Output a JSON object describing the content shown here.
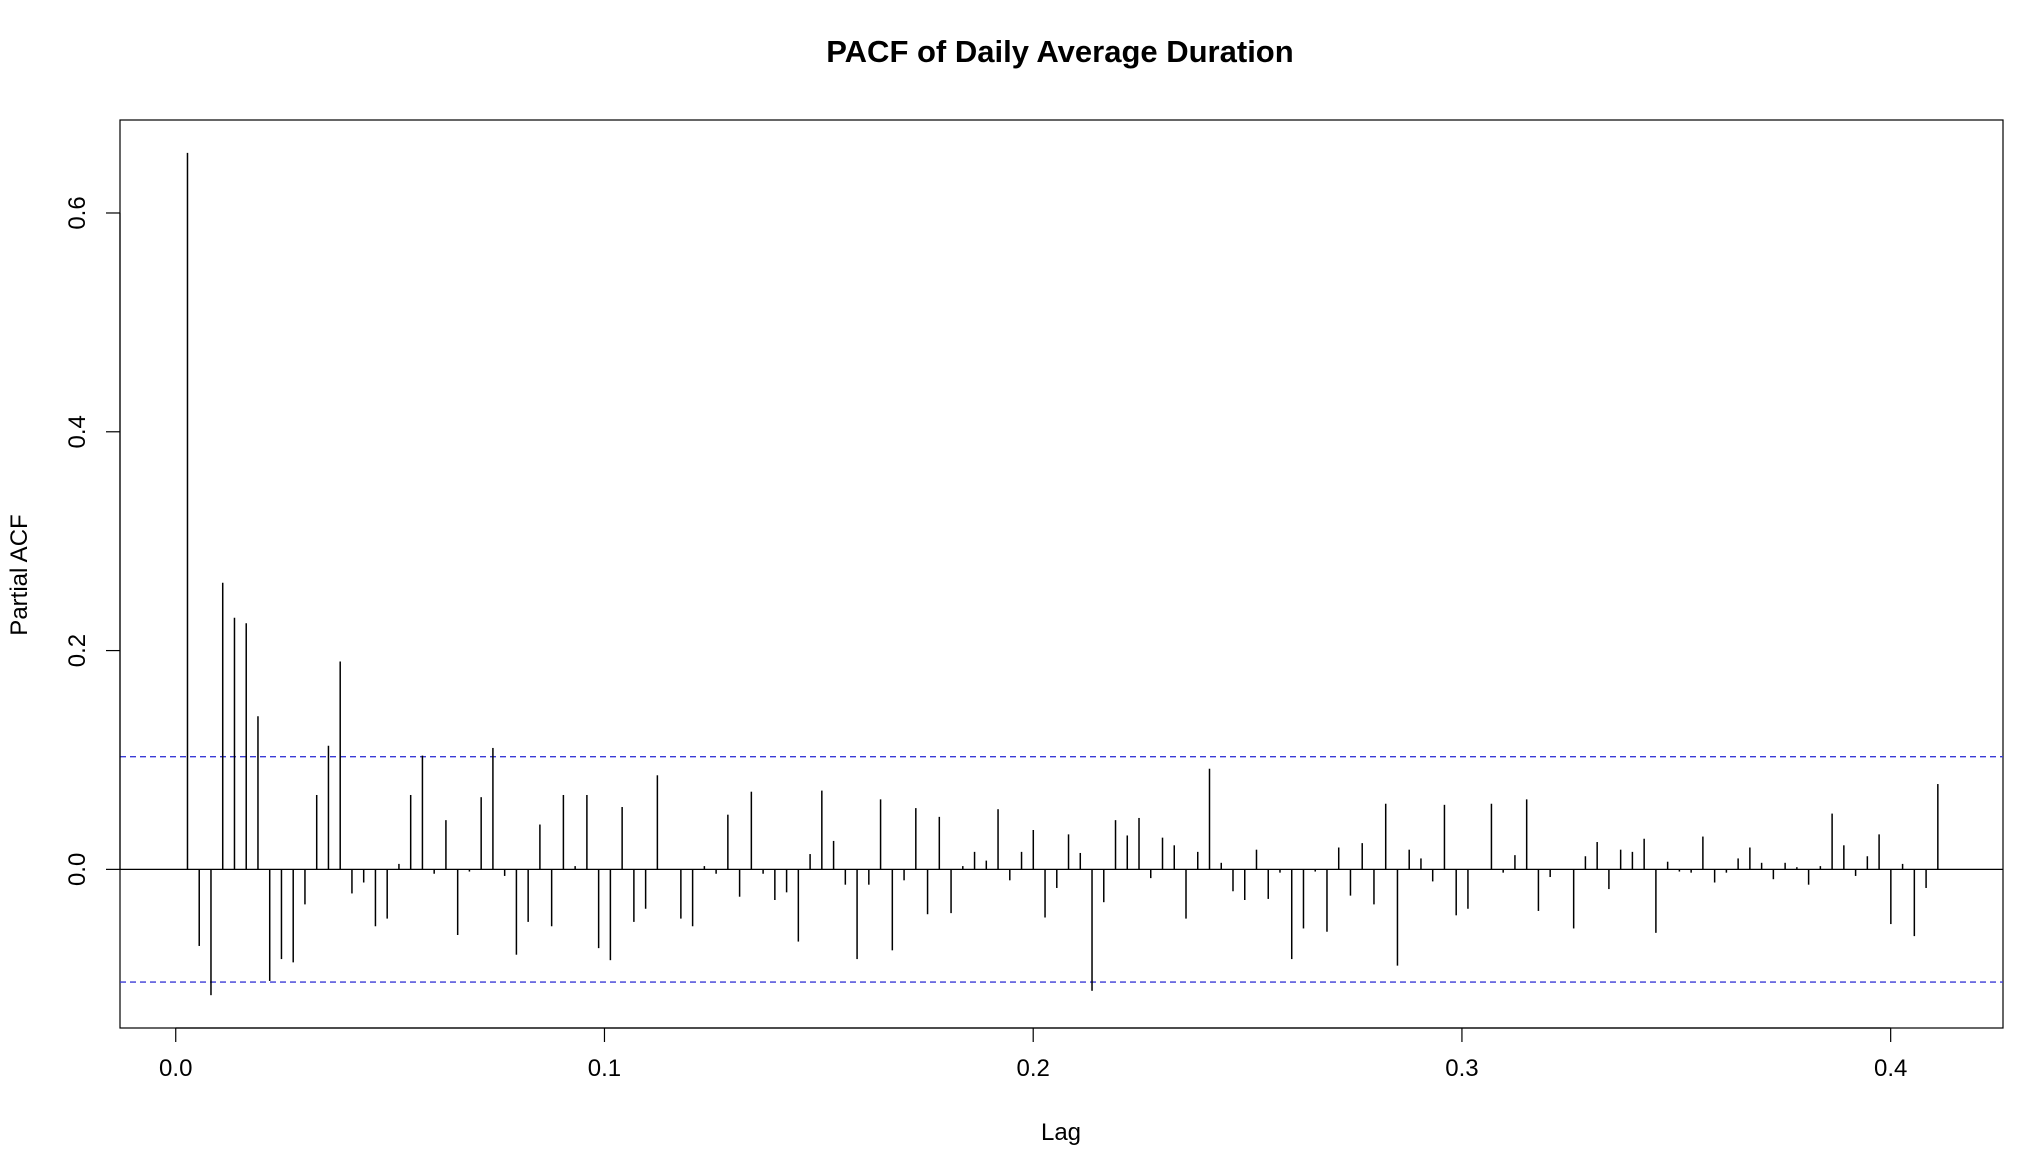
{
  "chart_data": {
    "type": "bar",
    "title": "PACF of Daily Average Duration",
    "xlabel": "Lag",
    "ylabel": "Partial ACF",
    "xlim": [
      -0.013,
      0.4262
    ],
    "ylim": [
      -0.145,
      0.685
    ],
    "x_ticks": [
      0.0,
      0.1,
      0.2,
      0.3,
      0.4
    ],
    "x_tick_labels": [
      "0.0",
      "0.1",
      "0.2",
      "0.3",
      "0.4"
    ],
    "y_ticks": [
      0.0,
      0.2,
      0.4,
      0.6
    ],
    "y_tick_labels": [
      "0.0",
      "0.2",
      "0.4",
      "0.6"
    ],
    "confidence_bound": 0.103,
    "grid": false,
    "lag_step": 0.00274,
    "lag_count": 150,
    "values": [
      0.655,
      -0.07,
      -0.115,
      0.262,
      0.23,
      0.225,
      0.14,
      -0.102,
      -0.082,
      -0.085,
      -0.032,
      0.068,
      0.113,
      0.19,
      -0.022,
      -0.012,
      -0.052,
      -0.045,
      0.005,
      0.068,
      0.104,
      -0.004,
      0.045,
      -0.06,
      -0.002,
      0.066,
      0.111,
      -0.006,
      -0.078,
      -0.048,
      0.041,
      -0.052,
      0.068,
      0.003,
      0.068,
      -0.072,
      -0.083,
      0.057,
      -0.048,
      -0.036,
      0.086,
      0.0,
      -0.045,
      -0.052,
      0.003,
      -0.004,
      0.05,
      -0.025,
      0.071,
      -0.004,
      -0.028,
      -0.021,
      -0.066,
      0.014,
      0.072,
      0.026,
      -0.014,
      -0.082,
      -0.014,
      0.064,
      -0.074,
      -0.01,
      0.056,
      -0.041,
      0.048,
      -0.04,
      0.003,
      0.016,
      0.008,
      0.055,
      -0.01,
      0.016,
      0.036,
      -0.044,
      -0.017,
      0.032,
      0.015,
      -0.111,
      -0.03,
      0.045,
      0.031,
      0.047,
      -0.008,
      0.029,
      0.022,
      -0.045,
      0.016,
      0.092,
      0.006,
      -0.02,
      -0.028,
      0.018,
      -0.027,
      -0.003,
      -0.082,
      -0.054,
      -0.002,
      -0.057,
      0.02,
      -0.024,
      0.024,
      -0.032,
      0.06,
      -0.088,
      0.018,
      0.01,
      -0.011,
      0.059,
      -0.042,
      -0.036,
      0.0,
      0.06,
      -0.003,
      0.013,
      0.064,
      -0.038,
      -0.007,
      0.0,
      -0.054,
      0.012,
      0.025,
      -0.018,
      0.018,
      0.016,
      0.028,
      -0.058,
      0.007,
      -0.002,
      -0.003,
      0.03,
      -0.012,
      -0.003,
      0.01,
      0.02,
      0.006,
      -0.009,
      0.006,
      0.002,
      -0.014,
      0.003,
      0.051,
      0.022,
      -0.006,
      0.012,
      0.032,
      -0.05,
      0.005,
      -0.061,
      -0.017,
      0.078
    ],
    "colors": {
      "bars": "#000000",
      "confidence_lines": "#3b3bd6",
      "zero_line": "#000000",
      "frame": "#000000"
    }
  }
}
